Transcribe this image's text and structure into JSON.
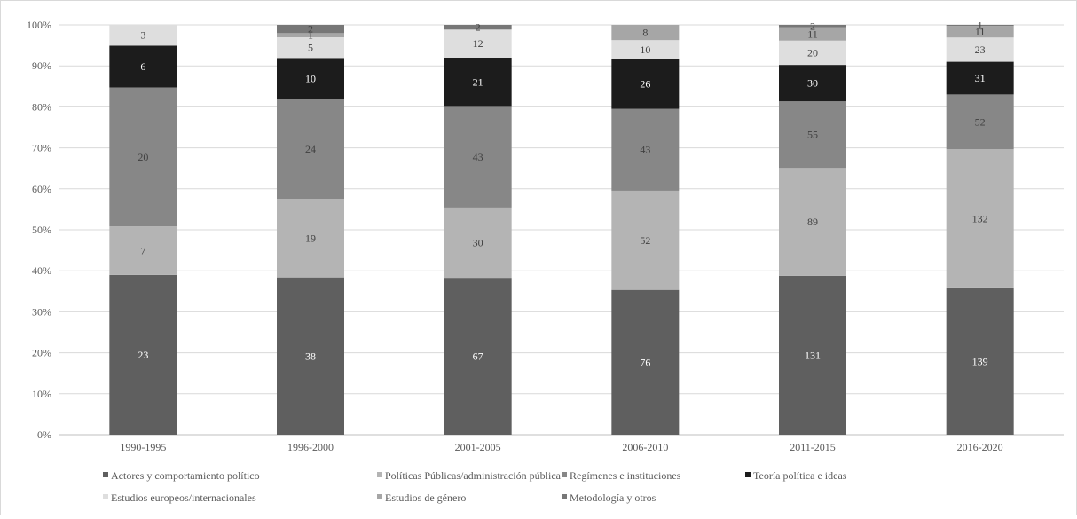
{
  "chart_data": {
    "type": "bar",
    "stacked": true,
    "normalized": true,
    "title": "",
    "xlabel": "",
    "ylabel": "",
    "ylim": [
      0,
      100
    ],
    "y_tick_labels": [
      "0%",
      "10%",
      "20%",
      "30%",
      "40%",
      "50%",
      "60%",
      "70%",
      "80%",
      "90%",
      "100%"
    ],
    "grid": true,
    "legend_position": "bottom",
    "categories": [
      "1990-1995",
      "1996-2000",
      "2001-2005",
      "2006-2010",
      "2011-2015",
      "2016-2020"
    ],
    "series": [
      {
        "name": "Actores y comportamiento político",
        "color": "#5f5f5f",
        "label_color": "#ffffff",
        "values": [
          23,
          38,
          67,
          76,
          131,
          139
        ]
      },
      {
        "name": "Políticas Públicas/administración pública",
        "color": "#b4b4b4",
        "label_color": "#404040",
        "values": [
          7,
          19,
          30,
          52,
          89,
          132
        ]
      },
      {
        "name": "Regímenes e instituciones",
        "color": "#878787",
        "label_color": "#404040",
        "values": [
          20,
          24,
          43,
          43,
          55,
          52
        ]
      },
      {
        "name": "Teoría política e ideas",
        "color": "#1c1c1c",
        "label_color": "#ffffff",
        "values": [
          6,
          10,
          21,
          26,
          30,
          31
        ]
      },
      {
        "name": "Estudios europeos/internacionales",
        "color": "#dedede",
        "label_color": "#404040",
        "values": [
          3,
          5,
          12,
          10,
          20,
          23
        ]
      },
      {
        "name": "Estudios de género",
        "color": "#a6a6a6",
        "label_color": "#404040",
        "values": [
          0,
          1,
          0,
          8,
          11,
          11
        ]
      },
      {
        "name": "Metodología y otros",
        "color": "#777777",
        "label_color": "#404040",
        "values": [
          0,
          2,
          2,
          0,
          2,
          1
        ]
      }
    ]
  }
}
